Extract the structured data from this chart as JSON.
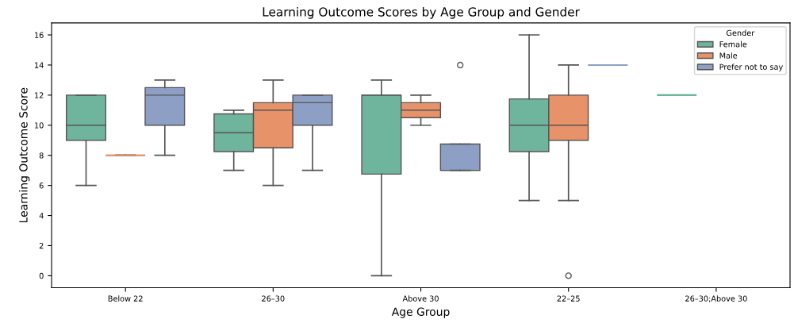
{
  "chart_data": {
    "type": "box",
    "title": "Learning Outcome Scores by Age Group and Gender",
    "xlabel": "Age Group",
    "ylabel": "Learning Outcome Score",
    "legend_title": "Gender",
    "legend": "top right",
    "grid": false,
    "categories": [
      "Below 22",
      "26–30",
      "Above 30",
      "22–25",
      "26–30;Above 30"
    ],
    "ylim": [
      -0.8,
      16.8
    ],
    "yticks": [
      0,
      2,
      4,
      6,
      8,
      10,
      12,
      14,
      16
    ],
    "series": [
      {
        "name": "Female",
        "color": "#6fb59e",
        "boxes": [
          {
            "low": 6,
            "q1": 9,
            "median": 10,
            "q3": 12,
            "high": 12
          },
          {
            "low": 7,
            "q1": 8.25,
            "median": 9.5,
            "q3": 10.75,
            "high": 11
          },
          {
            "low": 0,
            "q1": 6.75,
            "median": 12,
            "q3": 12,
            "high": 13
          },
          {
            "low": 5,
            "q1": 8.25,
            "median": 10,
            "q3": 11.75,
            "high": 16
          },
          {
            "low": 12,
            "q1": 12,
            "median": 12,
            "q3": 12,
            "high": 12
          }
        ]
      },
      {
        "name": "Male",
        "color": "#e8926a",
        "boxes": [
          {
            "low": 8,
            "q1": 8,
            "median": 8,
            "q3": 8,
            "high": 8
          },
          {
            "low": 6,
            "q1": 8.5,
            "median": 11,
            "q3": 11.5,
            "high": 13
          },
          {
            "low": 10,
            "q1": 10.5,
            "median": 11,
            "q3": 11.5,
            "high": 12
          },
          {
            "low": 5,
            "q1": 9,
            "median": 10,
            "q3": 12,
            "high": 14,
            "outliers": [
              0
            ]
          },
          null
        ]
      },
      {
        "name": "Prefer not to say",
        "color": "#8e9fc6",
        "boxes": [
          {
            "low": 8,
            "q1": 10,
            "median": 12,
            "q3": 12.5,
            "high": 13
          },
          {
            "low": 7,
            "q1": 10,
            "median": 11.5,
            "q3": 12,
            "high": 12
          },
          {
            "low": 7,
            "q1": 7,
            "median": 7,
            "q3": 8.75,
            "high": 8.75,
            "outliers": [
              14
            ]
          },
          {
            "low": 14,
            "q1": 14,
            "median": 14,
            "q3": 14,
            "high": 14
          },
          null
        ]
      }
    ]
  }
}
